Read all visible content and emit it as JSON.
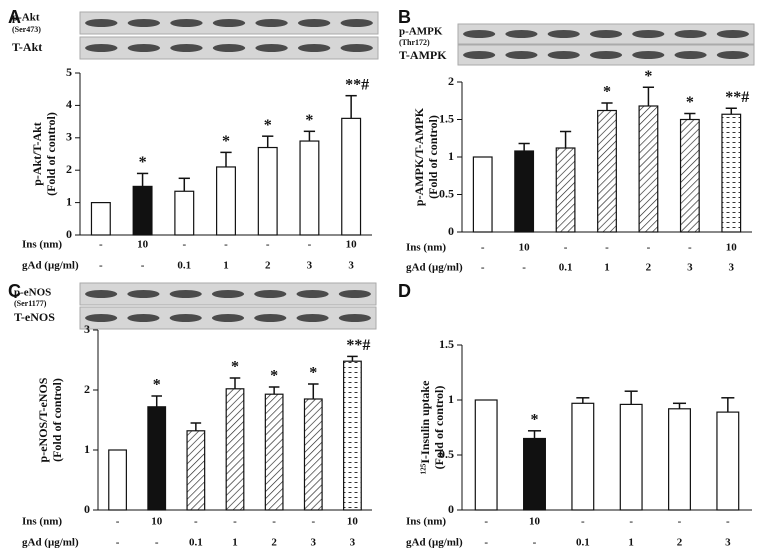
{
  "chart_data": [
    {
      "type": "bar",
      "panel": "A",
      "blot_labels": [
        "p-Akt",
        "(Ser473)",
        "T-Akt"
      ],
      "y_label": [
        "p-Akt/T-Akt",
        "(Fold of control)"
      ],
      "ylim": [
        0,
        5
      ],
      "yticks": [
        0,
        1,
        2,
        3,
        4,
        5
      ],
      "values": [
        1,
        1.5,
        1.35,
        2.1,
        2.7,
        2.9,
        3.6
      ],
      "errors": [
        null,
        0.4,
        0.4,
        0.45,
        0.35,
        0.3,
        0.7
      ],
      "bar_styles": [
        "white",
        "black",
        "white",
        "white",
        "white",
        "white",
        "white"
      ],
      "annotations": [
        null,
        "*",
        null,
        "*",
        "*",
        "*",
        "**#"
      ],
      "rows": [
        {
          "label": "Ins (nm)",
          "values": [
            "-",
            "10",
            "-",
            "-",
            "-",
            "-",
            "10"
          ]
        },
        {
          "label": "gAd (μg/ml)",
          "values": [
            "-",
            "-",
            "0.1",
            "1",
            "2",
            "3",
            "3"
          ]
        }
      ]
    },
    {
      "type": "bar",
      "panel": "B",
      "blot_labels": [
        "p-AMPK",
        "(Thr172)",
        "T-AMPK"
      ],
      "y_label": [
        "p-AMPK/T-AMPK",
        "(Fold of control)"
      ],
      "ylim": [
        0,
        2
      ],
      "yticks": [
        0,
        0.5,
        1,
        1.5,
        2
      ],
      "values": [
        1,
        1.08,
        1.12,
        1.62,
        1.68,
        1.5,
        1.57
      ],
      "errors": [
        null,
        0.1,
        0.22,
        0.1,
        0.25,
        0.08,
        0.08
      ],
      "bar_styles": [
        "white",
        "black",
        "hatch",
        "hatch",
        "hatch",
        "hatch",
        "dash"
      ],
      "annotations": [
        null,
        null,
        null,
        "*",
        "*",
        "*",
        "**#"
      ],
      "rows": [
        {
          "label": "Ins (nm)",
          "values": [
            "-",
            "10",
            "-",
            "-",
            "-",
            "-",
            "10"
          ]
        },
        {
          "label": "gAd (μg/ml)",
          "values": [
            "-",
            "-",
            "0.1",
            "1",
            "2",
            "3",
            "3"
          ]
        }
      ]
    },
    {
      "type": "bar",
      "panel": "C",
      "blot_labels": [
        "p-eNOS",
        "(Ser1177)",
        "T-eNOS"
      ],
      "y_label": [
        "p-eNOS/T-eNOS",
        "(Fold of control)"
      ],
      "ylim": [
        0,
        3
      ],
      "yticks": [
        0,
        1,
        2,
        3
      ],
      "values": [
        1,
        1.72,
        1.32,
        2.02,
        1.93,
        1.85,
        2.48
      ],
      "errors": [
        null,
        0.18,
        0.13,
        0.18,
        0.12,
        0.25,
        0.08
      ],
      "bar_styles": [
        "white",
        "black",
        "hatch",
        "hatch",
        "hatch",
        "hatch",
        "dash"
      ],
      "annotations": [
        null,
        "*",
        null,
        "*",
        "*",
        "*",
        "**#"
      ],
      "rows": [
        {
          "label": "Ins (nm)",
          "values": [
            "-",
            "10",
            "-",
            "-",
            "-",
            "-",
            "10"
          ]
        },
        {
          "label": "gAd (μg/ml)",
          "values": [
            "-",
            "-",
            "0.1",
            "1",
            "2",
            "3",
            "3"
          ]
        }
      ]
    },
    {
      "type": "bar",
      "panel": "D",
      "y_label": [
        "¹²⁵I-Insulin uptake",
        "(Fold of control)"
      ],
      "ylim": [
        0,
        1.5
      ],
      "yticks": [
        0,
        0.5,
        1,
        1.5
      ],
      "values": [
        1,
        0.65,
        0.97,
        0.96,
        0.92,
        0.89
      ],
      "errors": [
        null,
        0.07,
        0.05,
        0.12,
        0.05,
        0.13
      ],
      "bar_styles": [
        "white",
        "black",
        "white",
        "white",
        "white",
        "white"
      ],
      "annotations": [
        null,
        "*",
        null,
        null,
        null,
        null
      ],
      "rows": [
        {
          "label": "Ins (nm)",
          "values": [
            "-",
            "10",
            "-",
            "-",
            "-",
            "-"
          ]
        },
        {
          "label": "gAd (μg/ml)",
          "values": [
            "-",
            "-",
            "0.1",
            "1",
            "2",
            "3"
          ]
        }
      ]
    }
  ]
}
